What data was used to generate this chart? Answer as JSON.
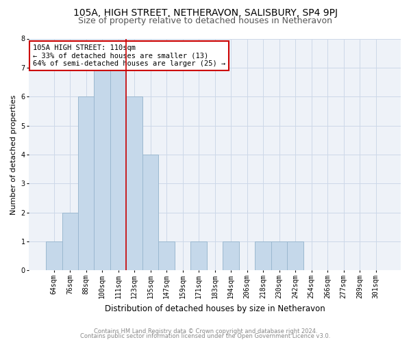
{
  "title1": "105A, HIGH STREET, NETHERAVON, SALISBURY, SP4 9PJ",
  "title2": "Size of property relative to detached houses in Netheravon",
  "xlabel": "Distribution of detached houses by size in Netheravon",
  "ylabel": "Number of detached properties",
  "bar_labels": [
    "64sqm",
    "76sqm",
    "88sqm",
    "100sqm",
    "111sqm",
    "123sqm",
    "135sqm",
    "147sqm",
    "159sqm",
    "171sqm",
    "183sqm",
    "194sqm",
    "206sqm",
    "218sqm",
    "230sqm",
    "242sqm",
    "254sqm",
    "266sqm",
    "277sqm",
    "289sqm",
    "301sqm"
  ],
  "bar_values": [
    1,
    2,
    6,
    7,
    7,
    6,
    4,
    1,
    0,
    1,
    0,
    1,
    0,
    1,
    1,
    1,
    0,
    0,
    0,
    0,
    0
  ],
  "bar_color": "#c5d8ea",
  "bar_edge_color": "#9bb8d0",
  "vline_position": 4.5,
  "vline_color": "#cc0000",
  "annotation_text": "105A HIGH STREET: 110sqm\n← 33% of detached houses are smaller (13)\n64% of semi-detached houses are larger (25) →",
  "annotation_box_color": "white",
  "annotation_box_edge": "#cc0000",
  "ylim": [
    0,
    8
  ],
  "yticks": [
    0,
    1,
    2,
    3,
    4,
    5,
    6,
    7,
    8
  ],
  "grid_color": "#ccd8e8",
  "bg_color": "#eef2f8",
  "footer1": "Contains HM Land Registry data © Crown copyright and database right 2024.",
  "footer2": "Contains public sector information licensed under the Open Government Licence v3.0.",
  "title1_fontsize": 10,
  "title2_fontsize": 9,
  "xlabel_fontsize": 8.5,
  "ylabel_fontsize": 8,
  "tick_fontsize": 7,
  "annotation_fontsize": 7.5,
  "footer_fontsize": 6
}
